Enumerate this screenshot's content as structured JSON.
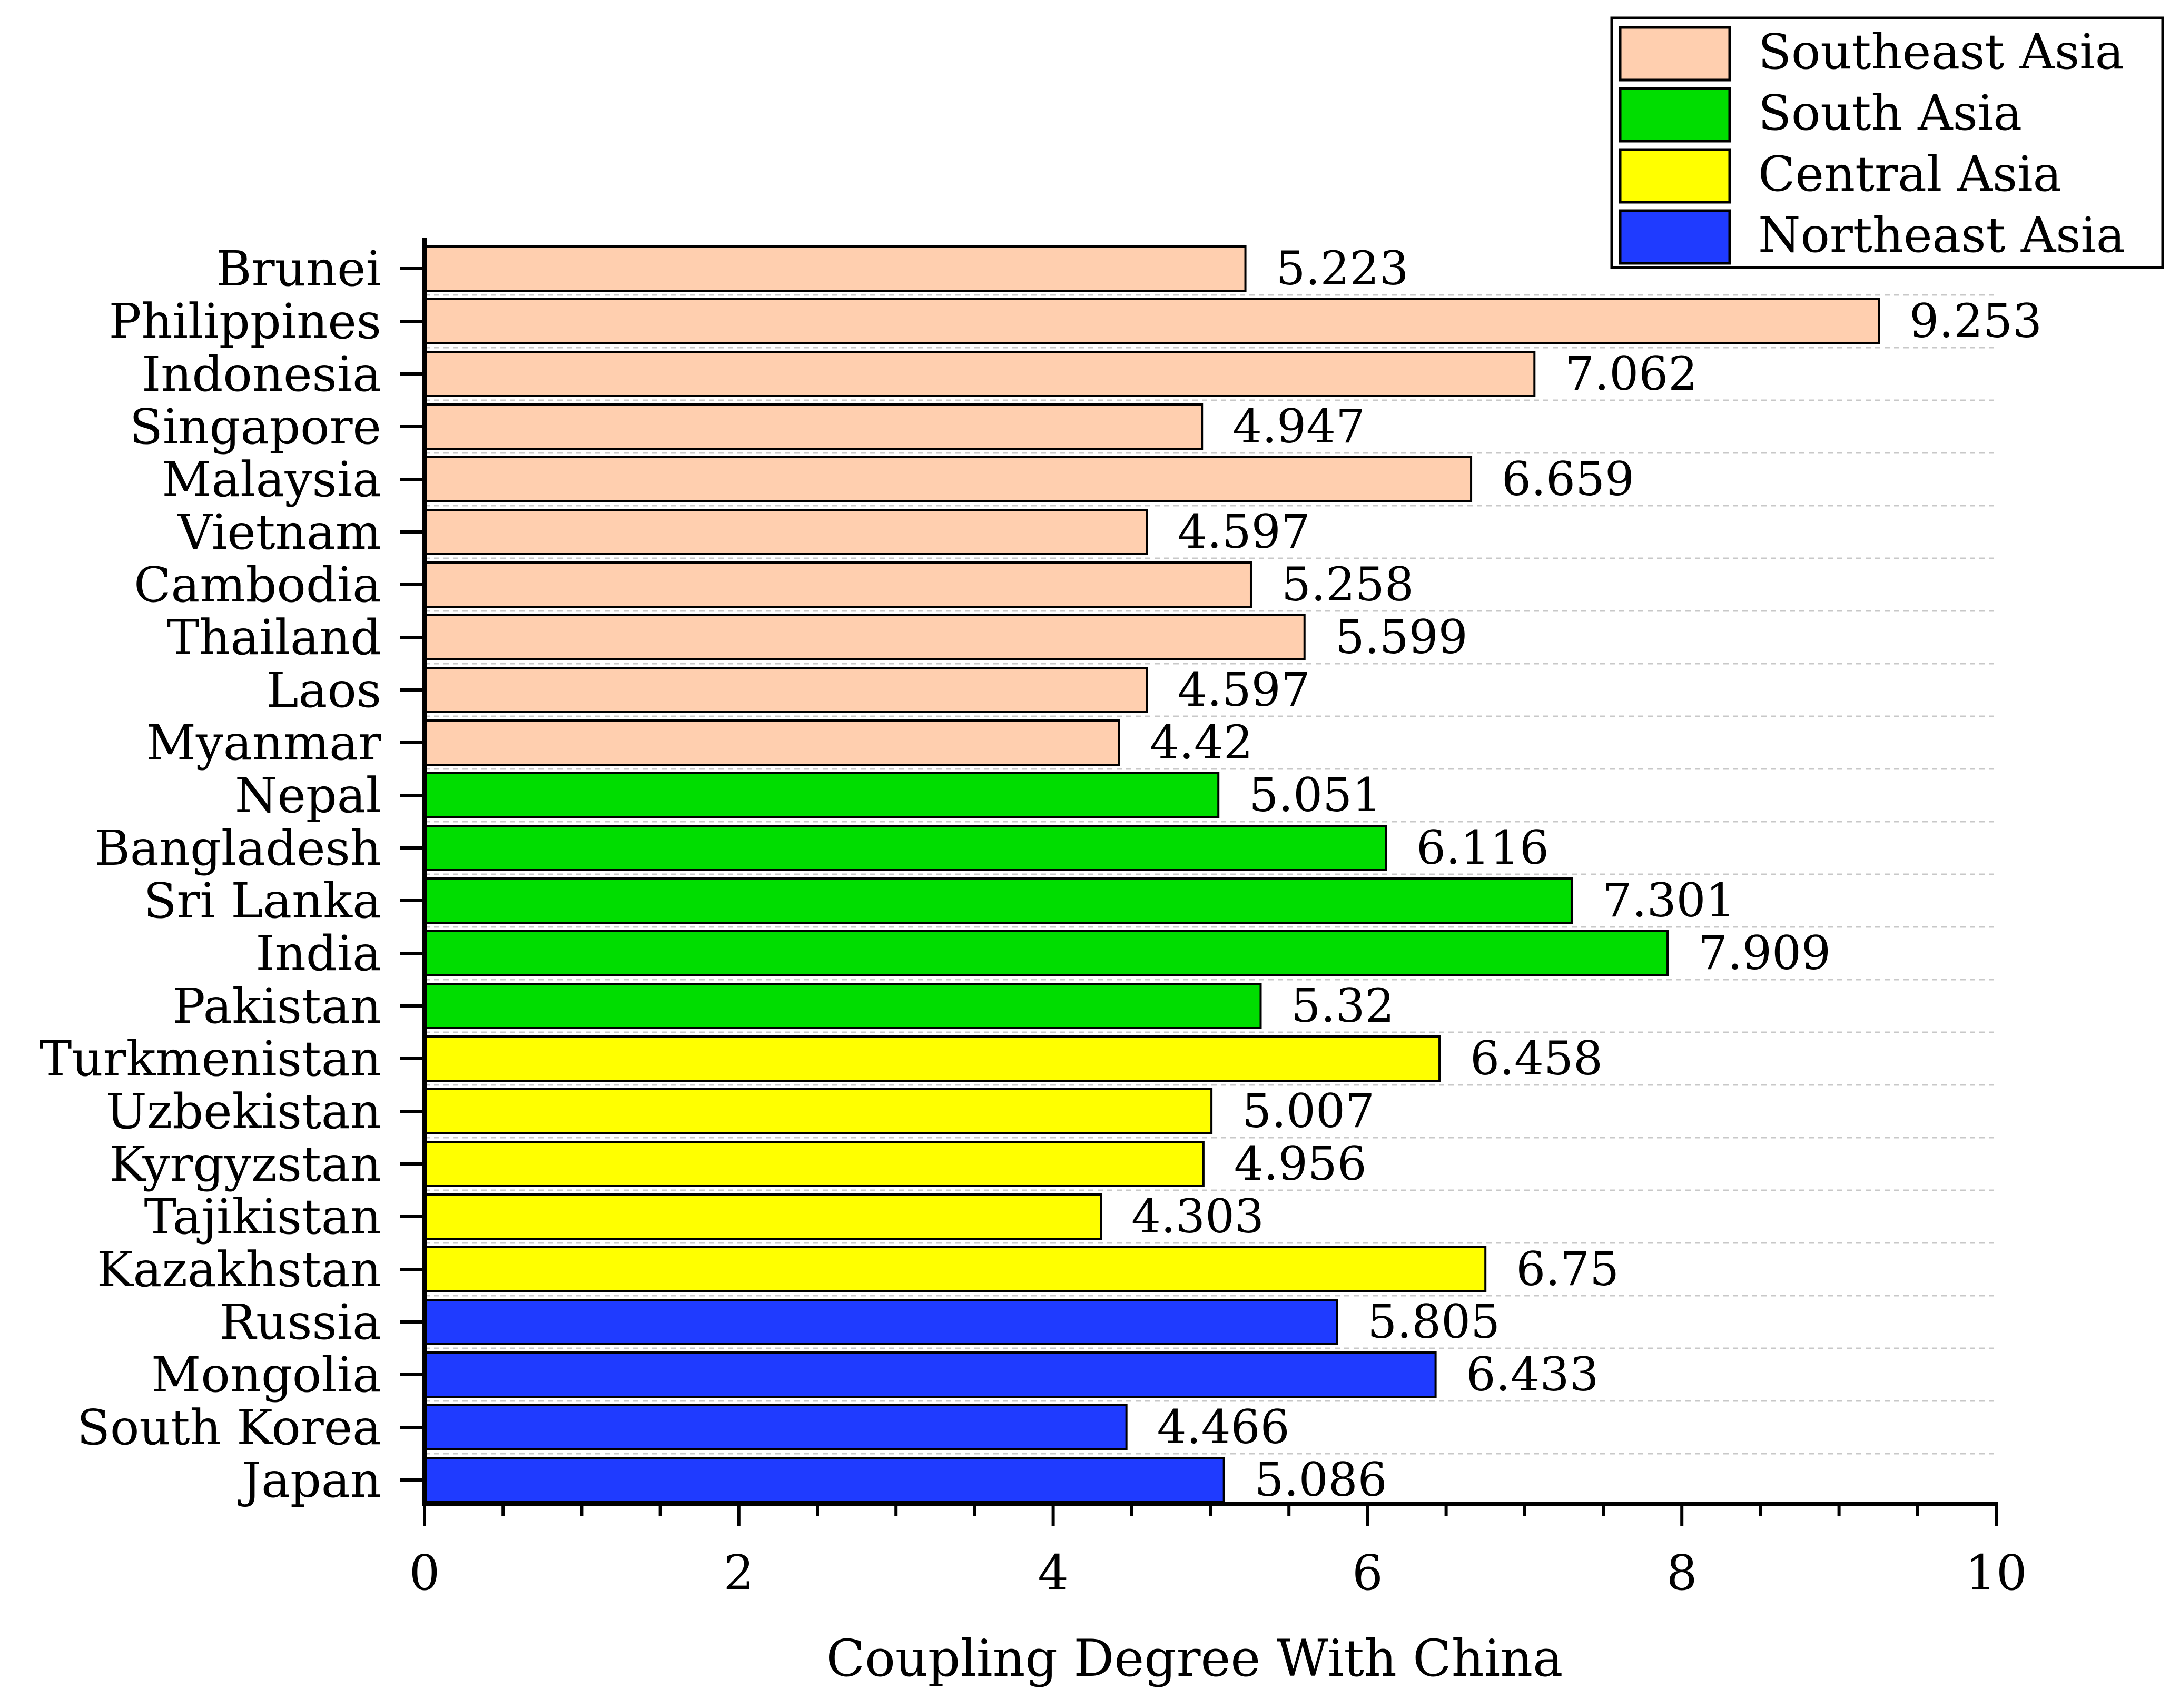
{
  "chart_data": {
    "type": "bar",
    "orientation": "horizontal",
    "title": "",
    "xlabel": "Coupling Degree With China",
    "ylabel": "",
    "xlim": [
      0,
      10
    ],
    "xticks": [
      0,
      2,
      4,
      6,
      8,
      10
    ],
    "grid": "horizontal dashed",
    "legend_position": "top-right",
    "legend": [
      {
        "name": "Southeast Asia",
        "color": "#FFCFAF"
      },
      {
        "name": "South Asia",
        "color": "#00DD00"
      },
      {
        "name": "Central Asia",
        "color": "#FFFF00"
      },
      {
        "name": "Northeast Asia",
        "color": "#1F3BFF"
      }
    ],
    "bars": [
      {
        "country": "Brunei",
        "value": 5.223,
        "label": "5.223",
        "group": "Southeast Asia"
      },
      {
        "country": "Philippines",
        "value": 9.253,
        "label": "9.253",
        "group": "Southeast Asia"
      },
      {
        "country": "Indonesia",
        "value": 7.062,
        "label": "7.062",
        "group": "Southeast Asia"
      },
      {
        "country": "Singapore",
        "value": 4.947,
        "label": "4.947",
        "group": "Southeast Asia"
      },
      {
        "country": "Malaysia",
        "value": 6.659,
        "label": "6.659",
        "group": "Southeast Asia"
      },
      {
        "country": "Vietnam",
        "value": 4.597,
        "label": "4.597",
        "group": "Southeast Asia"
      },
      {
        "country": "Cambodia",
        "value": 5.258,
        "label": "5.258",
        "group": "Southeast Asia"
      },
      {
        "country": "Thailand",
        "value": 5.599,
        "label": "5.599",
        "group": "Southeast Asia"
      },
      {
        "country": "Laos",
        "value": 4.597,
        "label": "4.597",
        "group": "Southeast Asia"
      },
      {
        "country": "Myanmar",
        "value": 4.42,
        "label": "4.42",
        "group": "Southeast Asia"
      },
      {
        "country": "Nepal",
        "value": 5.051,
        "label": "5.051",
        "group": "South Asia"
      },
      {
        "country": "Bangladesh",
        "value": 6.116,
        "label": "6.116",
        "group": "South Asia"
      },
      {
        "country": "Sri Lanka",
        "value": 7.301,
        "label": "7.301",
        "group": "South Asia"
      },
      {
        "country": "India",
        "value": 7.909,
        "label": "7.909",
        "group": "South Asia"
      },
      {
        "country": "Pakistan",
        "value": 5.32,
        "label": "5.32",
        "group": "South Asia"
      },
      {
        "country": "Turkmenistan",
        "value": 6.458,
        "label": "6.458",
        "group": "Central Asia"
      },
      {
        "country": "Uzbekistan",
        "value": 5.007,
        "label": "5.007",
        "group": "Central Asia"
      },
      {
        "country": "Kyrgyzstan",
        "value": 4.956,
        "label": "4.956",
        "group": "Central Asia"
      },
      {
        "country": "Tajikistan",
        "value": 4.303,
        "label": "4.303",
        "group": "Central Asia"
      },
      {
        "country": "Kazakhstan",
        "value": 6.75,
        "label": "6.75",
        "group": "Central Asia"
      },
      {
        "country": "Russia",
        "value": 5.805,
        "label": "5.805",
        "group": "Northeast Asia"
      },
      {
        "country": "Mongolia",
        "value": 6.433,
        "label": "6.433",
        "group": "Northeast Asia"
      },
      {
        "country": "South Korea",
        "value": 4.466,
        "label": "4.466",
        "group": "Northeast Asia"
      },
      {
        "country": "Japan",
        "value": 5.086,
        "label": "5.086",
        "group": "Northeast Asia"
      }
    ]
  }
}
